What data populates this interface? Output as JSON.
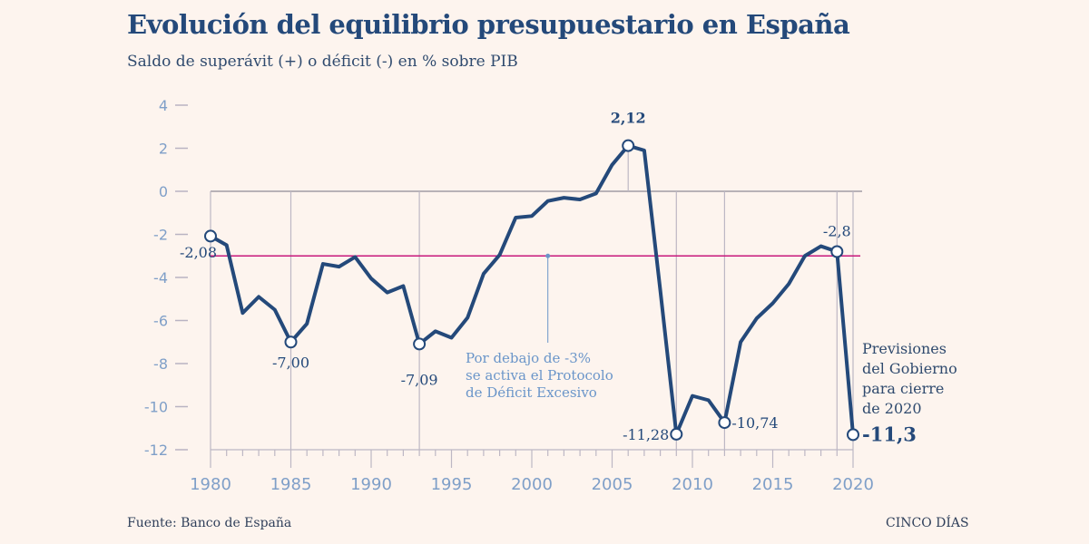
{
  "header": {
    "title": "Evolución del equilibrio presupuestario en España",
    "subtitle": "Saldo de superávit (+) o déficit (-) en % sobre PIB"
  },
  "footer": {
    "source": "Fuente: Banco de España",
    "brand": "CINCO DÍAS"
  },
  "colors": {
    "line": "#24497a",
    "threshold": "#c8187c",
    "annotation": "#6a95c9",
    "background": "#fdf4ee"
  },
  "chart_data": {
    "type": "line",
    "title": "Evolución del equilibrio presupuestario en España",
    "subtitle": "Saldo de superávit (+) o déficit (-) en % sobre PIB",
    "xlabel": "",
    "ylabel": "",
    "xlim": [
      1980,
      2020
    ],
    "ylim": [
      -12,
      4
    ],
    "x_ticks": [
      1980,
      1985,
      1990,
      1995,
      2000,
      2005,
      2010,
      2015,
      2020
    ],
    "y_ticks": [
      4,
      2,
      0,
      -2,
      -4,
      -6,
      -8,
      -10,
      -12
    ],
    "x": [
      1980,
      1981,
      1982,
      1983,
      1984,
      1985,
      1986,
      1987,
      1988,
      1989,
      1990,
      1991,
      1992,
      1993,
      1994,
      1995,
      1996,
      1997,
      1998,
      1999,
      2000,
      2001,
      2002,
      2003,
      2004,
      2005,
      2006,
      2007,
      2008,
      2009,
      2010,
      2011,
      2012,
      2013,
      2014,
      2015,
      2016,
      2017,
      2018,
      2019,
      2020
    ],
    "values": [
      -2.08,
      -2.5,
      -5.65,
      -4.9,
      -5.5,
      -7.0,
      -6.15,
      -3.37,
      -3.5,
      -3.05,
      -4.05,
      -4.7,
      -4.4,
      -7.09,
      -6.5,
      -6.8,
      -5.87,
      -3.83,
      -2.95,
      -1.22,
      -1.15,
      -0.45,
      -0.3,
      -0.38,
      -0.1,
      1.23,
      2.12,
      1.9,
      -4.6,
      -11.28,
      -9.5,
      -9.7,
      -10.74,
      -7.0,
      -5.9,
      -5.2,
      -4.3,
      -3.0,
      -2.55,
      -2.8,
      -11.3
    ],
    "highlighted_points": [
      {
        "x": 1980,
        "y": -2.08,
        "label": "-2,08"
      },
      {
        "x": 1985,
        "y": -7.0,
        "label": "-7,00"
      },
      {
        "x": 1993,
        "y": -7.09,
        "label": "-7,09"
      },
      {
        "x": 2006,
        "y": 2.12,
        "label": "2,12"
      },
      {
        "x": 2009,
        "y": -11.28,
        "label": "-11,28"
      },
      {
        "x": 2012,
        "y": -10.74,
        "label": "-10,74"
      },
      {
        "x": 2019,
        "y": -2.8,
        "label": "-2,8"
      },
      {
        "x": 2020,
        "y": -11.3,
        "label": "-11,3"
      }
    ],
    "threshold": {
      "y": -3,
      "annotation_x": 2001,
      "annotation": [
        "Por debajo de -3%",
        "se activa el Protocolo",
        "de Déficit Excesivo"
      ]
    },
    "forecast_note": [
      "Previsiones",
      "del Gobierno",
      "para cierre",
      "de 2020"
    ],
    "grid": false
  }
}
